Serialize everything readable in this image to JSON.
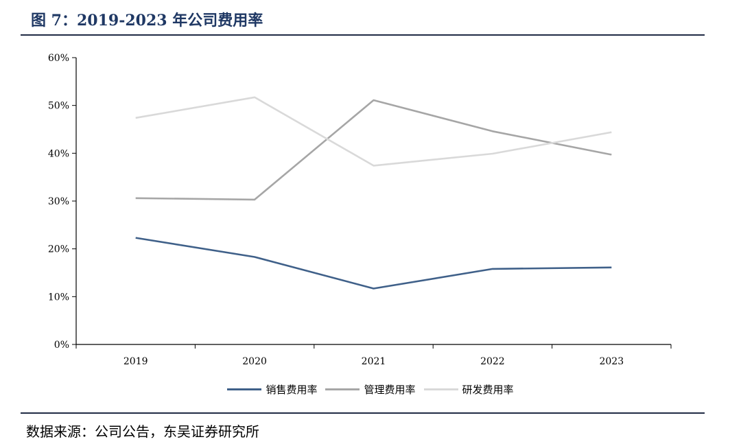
{
  "header": {
    "title": "图 7：2019-2023 年公司费用率"
  },
  "footer": {
    "source": "数据来源：公司公告，东吴证券研究所"
  },
  "chart_data": {
    "type": "line",
    "categories": [
      "2019",
      "2020",
      "2021",
      "2022",
      "2023"
    ],
    "ylim": [
      0,
      60
    ],
    "y_ticks": [
      0,
      10,
      20,
      30,
      40,
      50,
      60
    ],
    "y_tick_labels": [
      "0%",
      "10%",
      "20%",
      "30%",
      "40%",
      "50%",
      "60%"
    ],
    "grid": false,
    "legend_position": "bottom",
    "series": [
      {
        "name": "销售费用率",
        "color": "#3f6089",
        "values": [
          22.3,
          18.3,
          11.7,
          15.8,
          16.1
        ]
      },
      {
        "name": "管理费用率",
        "color": "#a6a6a6",
        "values": [
          30.6,
          30.3,
          51.1,
          44.6,
          39.7
        ]
      },
      {
        "name": "研发费用率",
        "color": "#d9d9d9",
        "values": [
          47.4,
          51.7,
          37.4,
          39.9,
          44.4
        ]
      }
    ]
  }
}
